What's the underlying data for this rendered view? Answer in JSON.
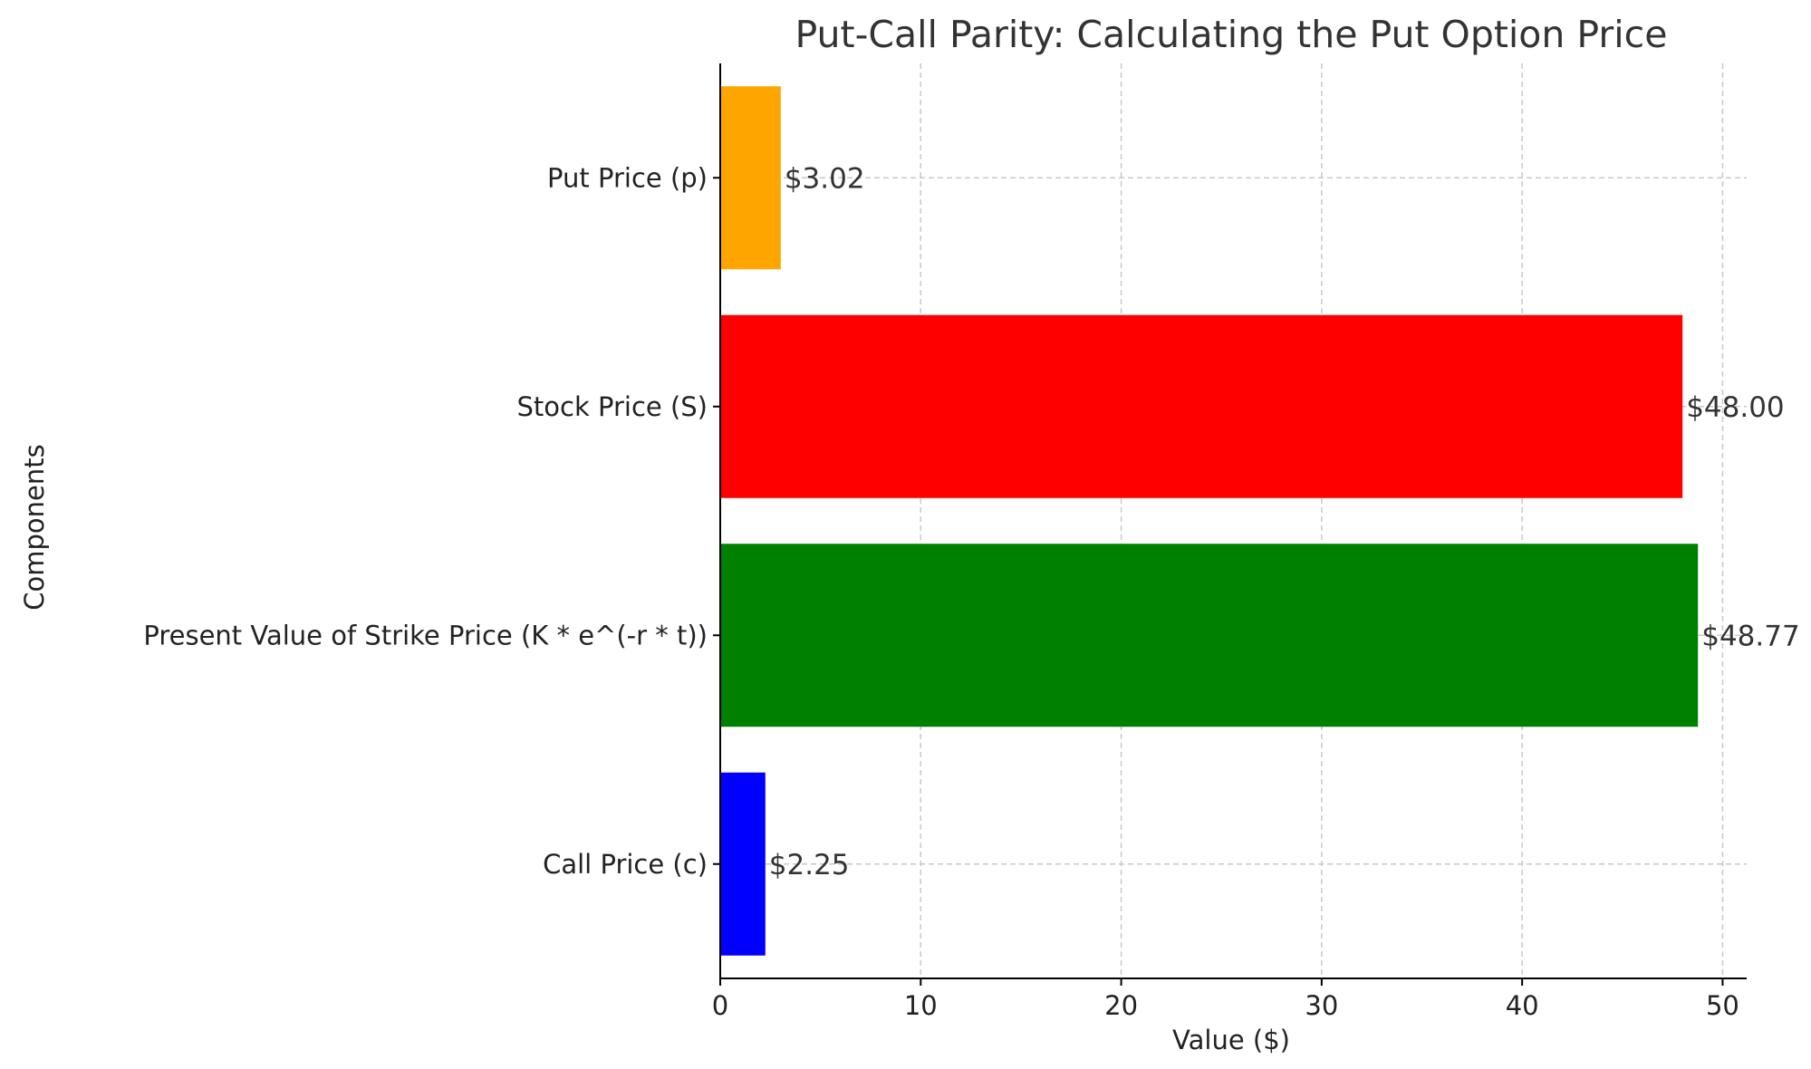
{
  "chart_data": {
    "type": "bar",
    "orientation": "horizontal",
    "title": "Put-Call Parity: Calculating the Put Option Price",
    "xlabel": "Value ($)",
    "ylabel": "Components",
    "categories": [
      "Call Price (c)",
      "Present Value of Strike Price (K * e^(-r * t))",
      "Stock Price (S)",
      "Put Price (p)"
    ],
    "values": [
      2.25,
      48.77,
      48.0,
      3.02
    ],
    "data_labels": [
      "$2.25",
      "$48.77",
      "$48.00",
      "$3.02"
    ],
    "colors": [
      "#0000ff",
      "#008000",
      "#ff0000",
      "#ffa500"
    ],
    "xlim": [
      0,
      51.2
    ],
    "xticks": [
      0,
      10,
      20,
      30,
      40,
      50
    ],
    "grid": true,
    "legend": "none"
  }
}
